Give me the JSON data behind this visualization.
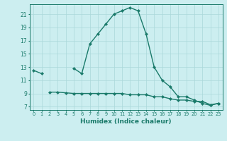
{
  "xlabel": "Humidex (Indice chaleur)",
  "x": [
    0,
    1,
    2,
    3,
    4,
    5,
    6,
    7,
    8,
    9,
    10,
    11,
    12,
    13,
    14,
    15,
    16,
    17,
    18,
    19,
    20,
    21,
    22,
    23
  ],
  "line1": [
    12.5,
    12.0,
    null,
    null,
    null,
    12.8,
    12.0,
    16.5,
    18.0,
    19.5,
    21.0,
    21.5,
    22.0,
    21.5,
    18.0,
    13.0,
    11.0,
    10.0,
    8.5,
    8.5,
    8.0,
    7.5,
    7.2,
    7.5
  ],
  "line2": [
    null,
    null,
    9.2,
    9.2,
    9.1,
    9.0,
    9.0,
    9.0,
    9.0,
    9.0,
    9.0,
    9.0,
    8.8,
    8.8,
    8.8,
    8.5,
    8.5,
    8.2,
    8.0,
    8.0,
    7.8,
    7.8,
    7.3,
    7.5
  ],
  "line_color": "#1a7a6a",
  "bg_color": "#cceef0",
  "grid_color": "#aad8da",
  "ylim": [
    6.5,
    22.5
  ],
  "yticks": [
    7,
    9,
    11,
    13,
    15,
    17,
    19,
    21
  ],
  "xlim": [
    -0.5,
    23.5
  ],
  "marker": "D",
  "markersize": 2.2,
  "linewidth": 1.0
}
